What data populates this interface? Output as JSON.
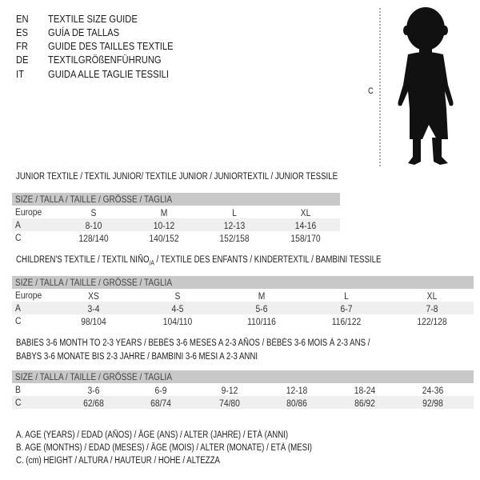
{
  "languages": [
    {
      "code": "EN",
      "label": "TEXTILE SIZE GUIDE"
    },
    {
      "code": "ES",
      "label": "GUÍA DE TALLAS"
    },
    {
      "code": "FR",
      "label": "GUIDE DES TAILLES TEXTILE"
    },
    {
      "code": "DE",
      "label": "TEXTILGRÖßENFÜHRUNG"
    },
    {
      "code": "IT",
      "label": "GUIDA ALLE TAGLIE TESSILI"
    }
  ],
  "figure": {
    "height_label": "C",
    "icon": "baby-silhouette"
  },
  "size_header": "SIZE / TALLA / TAILLE / GRÖSSE / TAGLIA",
  "junior": {
    "title": "JUNIOR TEXTILE / TEXTIL JUNIOR/ TEXTILE JUNIOR / JUNIORTEXTIL / JUNIOR TESSILE",
    "rows": [
      {
        "label": "Europe",
        "values": [
          "S",
          "M",
          "L",
          "XL"
        ]
      },
      {
        "label": "A",
        "values": [
          "8-10",
          "10-12",
          "12-13",
          "14-16"
        ]
      },
      {
        "label": "C",
        "values": [
          "128/140",
          "140/152",
          "152/158",
          "158/170"
        ]
      }
    ]
  },
  "children": {
    "title": "CHILDREN'S TEXTILE / TEXTIL NIÑO",
    "title_sub": "/A",
    "title_rest": " / TEXTILE DES ENFANTS / KINDERTEXTIL / BAMBINI TESSILE",
    "rows": [
      {
        "label": "Europe",
        "values": [
          "XS",
          "S",
          "M",
          "L",
          "XL"
        ]
      },
      {
        "label": "A",
        "values": [
          "3-4",
          "4-5",
          "5-6",
          "6-7",
          "7-8"
        ]
      },
      {
        "label": "C",
        "values": [
          "98/104",
          "104/110",
          "110/116",
          "116/122",
          "122/128"
        ]
      }
    ]
  },
  "babies": {
    "title_line1": "BABIES 3-6 MONTH TO 2-3 YEARS / BEBÉS 3-6 MESES A 2-3 AÑOS / BÉBÉS 3-6 MOIS À 2-3 ANS /",
    "title_line2": "BABYS 3-6 MONATE BIS 2-3 JAHRE / BAMBINI 3-6 MESI A 2-3 ANNI",
    "rows": [
      {
        "label": "B",
        "values": [
          "3-6",
          "6-9",
          "9-12",
          "12-18",
          "18-24",
          "24-36"
        ]
      },
      {
        "label": "C",
        "values": [
          "62/68",
          "68/74",
          "74/80",
          "80/86",
          "86/92",
          "92/98"
        ]
      }
    ]
  },
  "legend": [
    "A. AGE (YEARS) / EDAD (AÑOS) / ÂGE (ANS) / ALTER (JAHRE) / ETÀ (ANNI)",
    "B. AGE (MONTHS) / EDAD (MESES) / ÂGE (MOIS) / ALTER (MONATE) / ETÀ (MESI)",
    "C. (cm) HEIGHT / ALTURA / HAUTEUR / HÖHE / ALTEZZA"
  ]
}
